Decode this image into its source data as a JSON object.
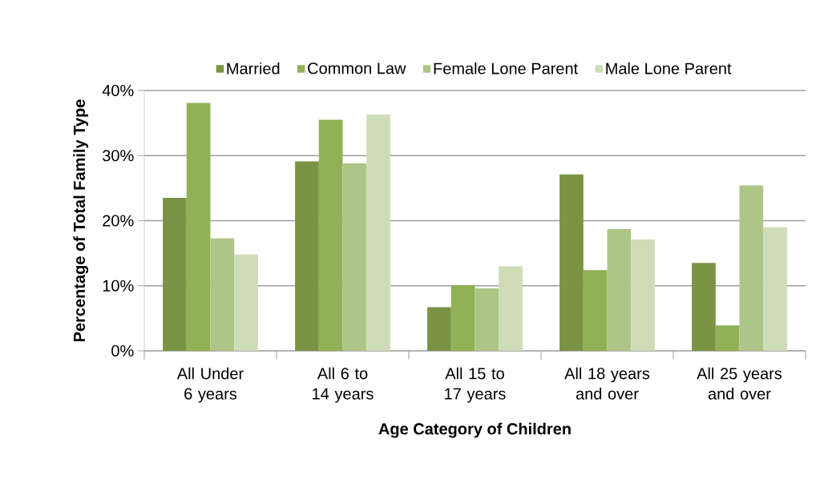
{
  "chart_data": {
    "type": "bar",
    "xlabel": "Age Category of Children",
    "ylabel": "Percentage of Total Family Type",
    "categories": [
      "All Under 6 years",
      "All 6 to 14 years",
      "All 15 to 17 years",
      "All 18 years and over",
      "All 25 years and over"
    ],
    "series": [
      {
        "name": "Married",
        "color": "#7a9344",
        "values": [
          23.5,
          29.1,
          6.7,
          27.1,
          13.5
        ]
      },
      {
        "name": "Common Law",
        "color": "#92b055",
        "values": [
          38.1,
          35.5,
          10.1,
          12.4,
          3.9
        ]
      },
      {
        "name": "Female Lone Parent",
        "color": "#adc687",
        "values": [
          17.3,
          28.8,
          9.6,
          18.7,
          25.4
        ]
      },
      {
        "name": "Male Lone Parent",
        "color": "#cfdcb8",
        "values": [
          14.8,
          36.3,
          13.0,
          17.1,
          19.0
        ]
      }
    ],
    "ylim": [
      0,
      40
    ],
    "yticks": [
      {
        "value": 0,
        "label": "0%"
      },
      {
        "value": 10,
        "label": "10%"
      },
      {
        "value": 20,
        "label": "20%"
      },
      {
        "value": 30,
        "label": "30%"
      },
      {
        "value": 40,
        "label": "40%"
      }
    ],
    "grid": "y",
    "legend": "top"
  }
}
